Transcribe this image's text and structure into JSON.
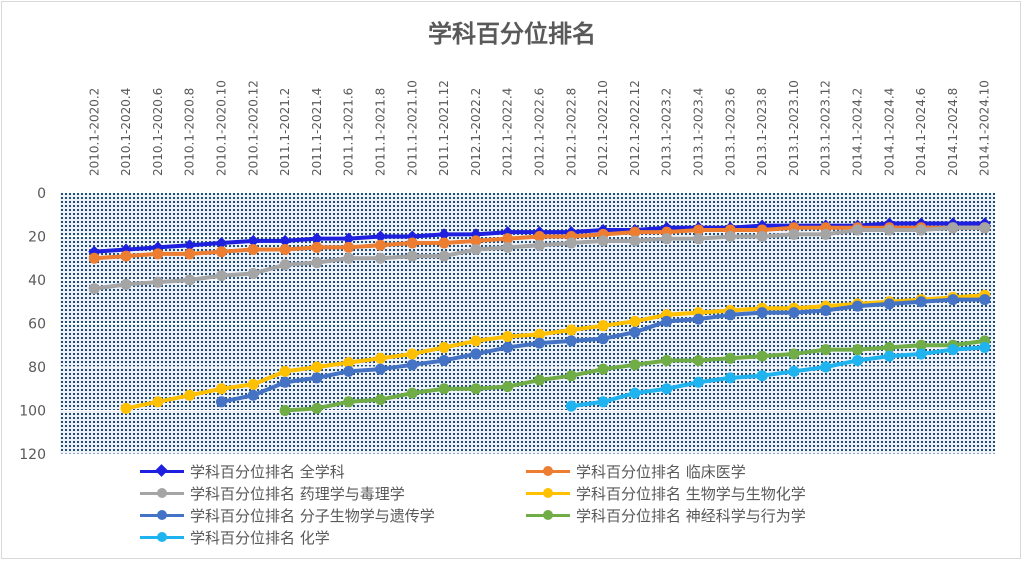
{
  "chart_data": {
    "type": "line",
    "title": "学科百分位排名",
    "categories": [
      "2010.1-2020.2",
      "2010.1-2020.4",
      "2010.1-2020.6",
      "2010.1-2020.8",
      "2010.1-2020.10",
      "2010.1-2020.12",
      "2011.1-2021.2",
      "2011.1-2021.4",
      "2011.1-2021.6",
      "2011.1-2021.8",
      "2011.1-2021.10",
      "2011.1-2021.12",
      "2012.1-2022.2",
      "2012.1-2022.4",
      "2012.1-2022.6",
      "2012.1-2022.8",
      "2012.1-2022.10",
      "2012.1-2022.12",
      "2013.1-2023.2",
      "2013.1-2023.4",
      "2013.1-2023.6",
      "2013.1-2023.8",
      "2013.1-2023.10",
      "2013.1-2023.12",
      "2014.1-2024.2",
      "2014.1-2024.4",
      "2014.1-2024.6",
      "2014.1-2024.8",
      "2014.1-2024.10"
    ],
    "y_ticks": [
      "0",
      "20",
      "40",
      "60",
      "80",
      "100",
      "120"
    ],
    "ylim": [
      0,
      120
    ],
    "y_reversed": true,
    "grid": true,
    "legend_position": "bottom",
    "series": [
      {
        "name": "学科百分位排名 全学科",
        "color": "#1f1fdf",
        "marker": "diamond",
        "values": [
          27,
          26,
          25,
          24,
          23,
          22,
          22,
          21,
          21,
          20,
          20,
          19,
          19,
          18,
          18,
          18,
          17,
          17,
          16,
          16,
          16,
          15,
          15,
          15,
          15,
          14,
          14,
          14,
          14
        ]
      },
      {
        "name": "学科百分位排名 临床医学",
        "color": "#ed7d31",
        "marker": "circle",
        "values": [
          30,
          29,
          28,
          28,
          27,
          26,
          26,
          25,
          25,
          24,
          23,
          23,
          22,
          21,
          20,
          20,
          19,
          18,
          18,
          17,
          17,
          17,
          16,
          16,
          16,
          16,
          16,
          16,
          16
        ]
      },
      {
        "name": "学科百分位排名 药理学与毒理学",
        "color": "#a5a5a5",
        "marker": "circle",
        "values": [
          44,
          42,
          41,
          40,
          38,
          37,
          33,
          32,
          30,
          30,
          29,
          29,
          26,
          25,
          24,
          23,
          22,
          22,
          21,
          21,
          20,
          20,
          19,
          19,
          17,
          17,
          17,
          16,
          16
        ]
      },
      {
        "name": "学科百分位排名 生物学与生物化学",
        "color": "#ffc000",
        "marker": "circle",
        "values": [
          null,
          99,
          96,
          93,
          90,
          88,
          82,
          80,
          78,
          76,
          74,
          71,
          68,
          66,
          65,
          63,
          61,
          59,
          56,
          55,
          54,
          53,
          53,
          52,
          51,
          50,
          49,
          48,
          47
        ]
      },
      {
        "name": "学科百分位排名 分子生物学与遗传学",
        "color": "#4472c4",
        "marker": "circle",
        "values": [
          null,
          null,
          null,
          null,
          96,
          93,
          87,
          85,
          82,
          81,
          79,
          77,
          74,
          71,
          69,
          68,
          67,
          64,
          59,
          58,
          56,
          55,
          55,
          54,
          52,
          51,
          50,
          49,
          49
        ]
      },
      {
        "name": "学科百分位排名 神经科学与行为学",
        "color": "#70ad47",
        "marker": "circle",
        "values": [
          null,
          null,
          null,
          null,
          null,
          null,
          100,
          99,
          96,
          95,
          92,
          90,
          90,
          89,
          86,
          84,
          81,
          79,
          77,
          77,
          76,
          75,
          74,
          72,
          72,
          71,
          70,
          70,
          68
        ]
      },
      {
        "name": "学科百分位排名 化学",
        "color": "#1fb4f0",
        "marker": "circle",
        "values": [
          null,
          null,
          null,
          null,
          null,
          null,
          null,
          null,
          null,
          null,
          null,
          null,
          null,
          null,
          null,
          98,
          96,
          92,
          90,
          87,
          85,
          84,
          82,
          80,
          77,
          75,
          74,
          72,
          71
        ]
      }
    ]
  }
}
